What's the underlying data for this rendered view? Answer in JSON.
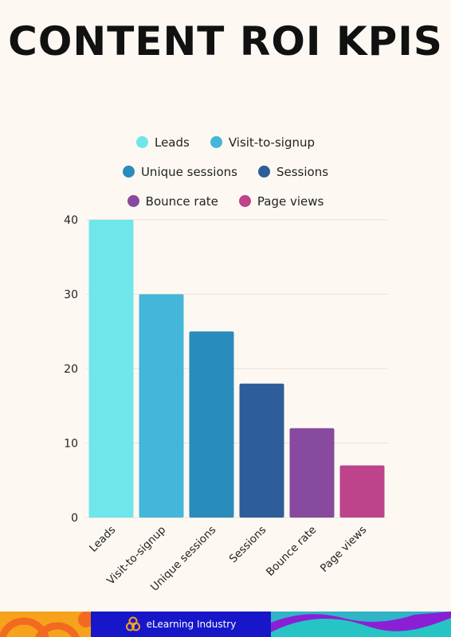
{
  "title": "CONTENT ROI KPIS",
  "brand": {
    "name": "eLearning Industry"
  },
  "chart_data": {
    "type": "bar",
    "categories": [
      "Leads",
      "Visit-to-signup",
      "Unique sessions",
      "Sessions",
      "Bounce rate",
      "Page views"
    ],
    "values": [
      40,
      30,
      25,
      18,
      12,
      7
    ],
    "colors": [
      "#6ee6ea",
      "#44b6d9",
      "#2a8bbd",
      "#2d5e99",
      "#874a9f",
      "#bd438b"
    ],
    "ylim": [
      0,
      40
    ],
    "yticks": [
      0,
      10,
      20,
      30,
      40
    ],
    "grid": true,
    "legend_position": "top",
    "xlabel": "",
    "ylabel": ""
  }
}
